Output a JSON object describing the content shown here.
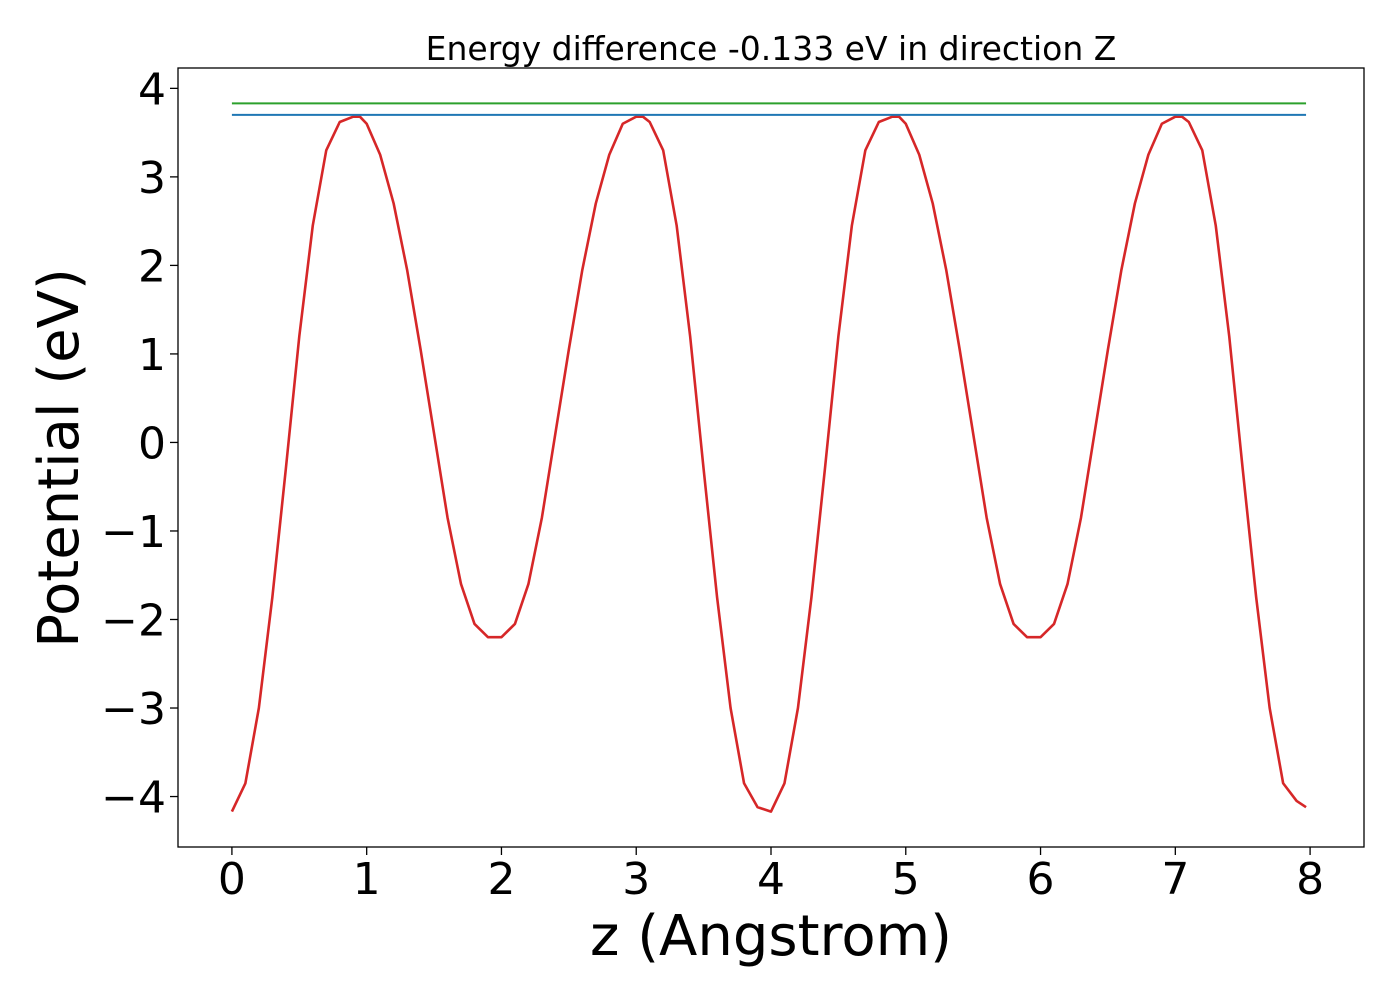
{
  "chart_data": {
    "type": "line",
    "title": "Energy difference -0.133 eV in direction Z",
    "xlabel": "z (Angstrom)",
    "ylabel": "Potential (eV)",
    "xlim": [
      -0.4,
      8.4
    ],
    "ylim": [
      -4.57,
      4.23
    ],
    "x_ticks": [
      0,
      1,
      2,
      3,
      4,
      5,
      6,
      7,
      8
    ],
    "x_tick_labels": [
      "0",
      "1",
      "2",
      "3",
      "4",
      "5",
      "6",
      "7",
      "8"
    ],
    "y_ticks": [
      4,
      3,
      2,
      1,
      0,
      -1,
      -2,
      -3,
      -4
    ],
    "y_tick_labels": [
      "4",
      "3",
      "2",
      "1",
      "0",
      "−1",
      "−2",
      "−3",
      "−4"
    ],
    "grid": false,
    "legend": "none",
    "series": [
      {
        "color": "#d62728",
        "x": [
          0.0,
          0.1,
          0.2,
          0.3,
          0.4,
          0.5,
          0.6,
          0.7,
          0.8,
          0.9,
          0.95,
          1.0,
          1.1,
          1.2,
          1.3,
          1.4,
          1.5,
          1.6,
          1.7,
          1.8,
          1.9,
          2.0,
          2.1,
          2.2,
          2.3,
          2.4,
          2.5,
          2.6,
          2.7,
          2.8,
          2.9,
          3.0,
          3.05,
          3.1,
          3.2,
          3.3,
          3.4,
          3.5,
          3.6,
          3.7,
          3.8,
          3.9,
          4.0,
          4.1,
          4.2,
          4.3,
          4.4,
          4.5,
          4.6,
          4.7,
          4.8,
          4.9,
          4.95,
          5.0,
          5.1,
          5.2,
          5.3,
          5.4,
          5.5,
          5.6,
          5.7,
          5.8,
          5.9,
          6.0,
          6.1,
          6.2,
          6.3,
          6.4,
          6.5,
          6.6,
          6.7,
          6.8,
          6.9,
          7.0,
          7.05,
          7.1,
          7.2,
          7.3,
          7.4,
          7.5,
          7.6,
          7.7,
          7.8,
          7.9,
          7.97
        ],
        "y": [
          -4.17,
          -3.85,
          -3.0,
          -1.75,
          -0.3,
          1.2,
          2.45,
          3.3,
          3.62,
          3.68,
          3.68,
          3.6,
          3.25,
          2.7,
          1.95,
          1.05,
          0.1,
          -0.85,
          -1.6,
          -2.05,
          -2.2,
          -2.2,
          -2.05,
          -1.6,
          -0.85,
          0.1,
          1.05,
          1.95,
          2.7,
          3.25,
          3.6,
          3.68,
          3.68,
          3.62,
          3.3,
          2.45,
          1.2,
          -0.3,
          -1.75,
          -3.0,
          -3.85,
          -4.12,
          -4.17,
          -3.85,
          -3.0,
          -1.75,
          -0.3,
          1.2,
          2.45,
          3.3,
          3.62,
          3.68,
          3.68,
          3.6,
          3.25,
          2.7,
          1.95,
          1.05,
          0.1,
          -0.85,
          -1.6,
          -2.05,
          -2.2,
          -2.2,
          -2.05,
          -1.6,
          -0.85,
          0.1,
          1.05,
          1.95,
          2.7,
          3.25,
          3.6,
          3.68,
          3.68,
          3.62,
          3.3,
          2.45,
          1.2,
          -0.3,
          -1.75,
          -3.0,
          -3.85,
          -4.05,
          -4.12
        ]
      },
      {
        "color": "#1f77b4",
        "x": [
          0.0,
          7.97
        ],
        "y": [
          3.7,
          3.7
        ]
      },
      {
        "color": "#2ca02c",
        "x": [
          0.0,
          7.97
        ],
        "y": [
          3.83,
          3.83
        ]
      }
    ]
  }
}
